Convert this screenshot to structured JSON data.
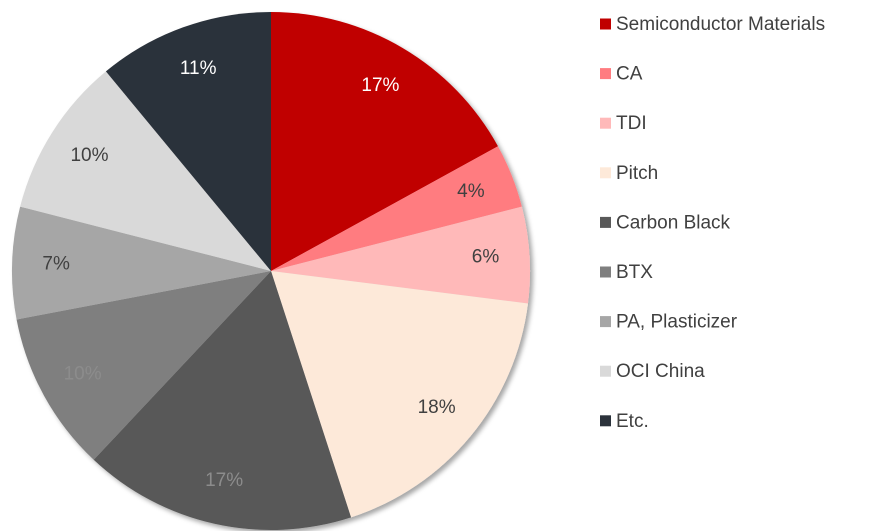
{
  "chart_data": {
    "type": "pie",
    "categories": [
      "Semiconductor Materials",
      "CA",
      "TDI",
      "Pitch",
      "Carbon Black",
      "BTX",
      "PA, Plasticizer",
      "OCI China",
      "Etc."
    ],
    "values": [
      17,
      4,
      6,
      18,
      17,
      10,
      7,
      10,
      11
    ],
    "value_labels": [
      "17%",
      "4%",
      "6%",
      "18%",
      "17%",
      "10%",
      "7%",
      "10%",
      "11%"
    ],
    "colors": [
      "#c00000",
      "#ff7c80",
      "#ffb9b9",
      "#fde9d9",
      "#595959",
      "#7f7f7f",
      "#a6a6a6",
      "#d9d9d9",
      "#2b323b"
    ],
    "legend": "right"
  }
}
